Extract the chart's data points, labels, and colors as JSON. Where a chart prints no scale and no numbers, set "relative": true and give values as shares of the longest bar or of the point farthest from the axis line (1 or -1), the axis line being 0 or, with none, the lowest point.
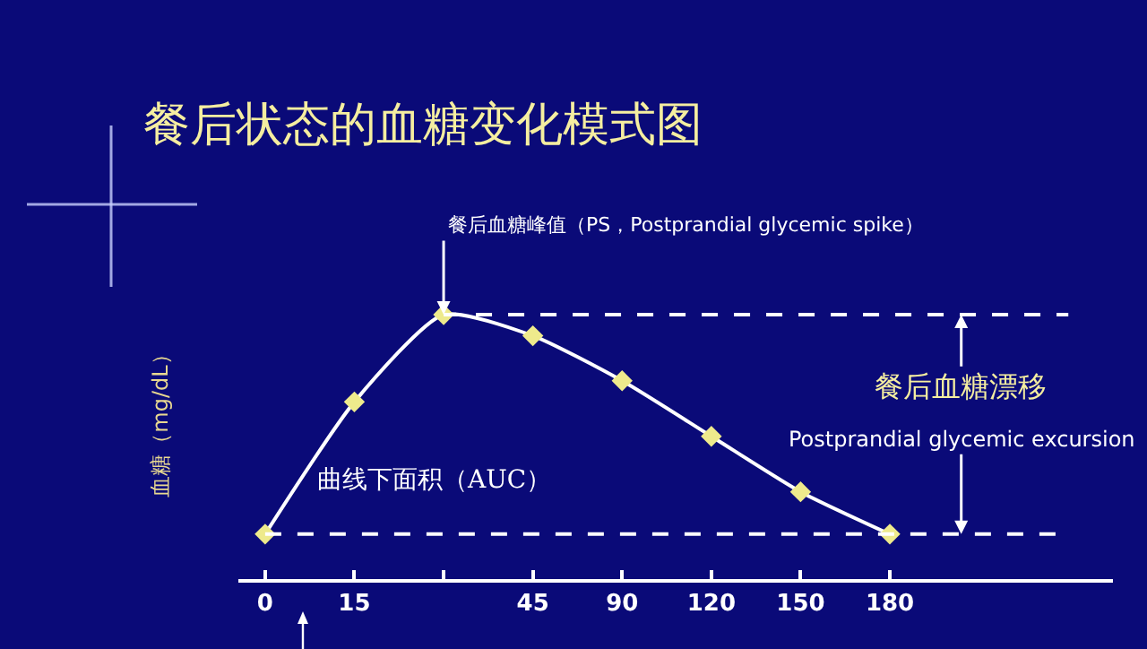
{
  "chart_data": {
    "type": "line",
    "title": "餐后状态的血糖变化模式图",
    "ylabel": "血糖（mg/dL）",
    "categories": [
      "0",
      "15",
      null,
      "45",
      "90",
      "120",
      "150",
      "180"
    ],
    "series": [
      {
        "color": "#ffffff",
        "values": [
          0.17,
          0.67,
          1,
          0.92,
          0.75,
          0.54,
          0.33,
          0.17
        ]
      }
    ],
    "relative": true,
    "marker": "diamond",
    "line_style": "solid",
    "ref_lines": [
      {
        "axis": "y",
        "value": 1,
        "color": "#ffffff",
        "line_style": "dashed"
      },
      {
        "axis": "y",
        "value": 0.17,
        "color": "#ffffff",
        "line_style": "dashed"
      }
    ],
    "annotations": [
      "餐后血糖峰值（PS，Postprandial glycemic spike）",
      "曲线下面积（AUC）",
      "餐后血糖漂移",
      "Postprandial glycemic excursion"
    ]
  }
}
